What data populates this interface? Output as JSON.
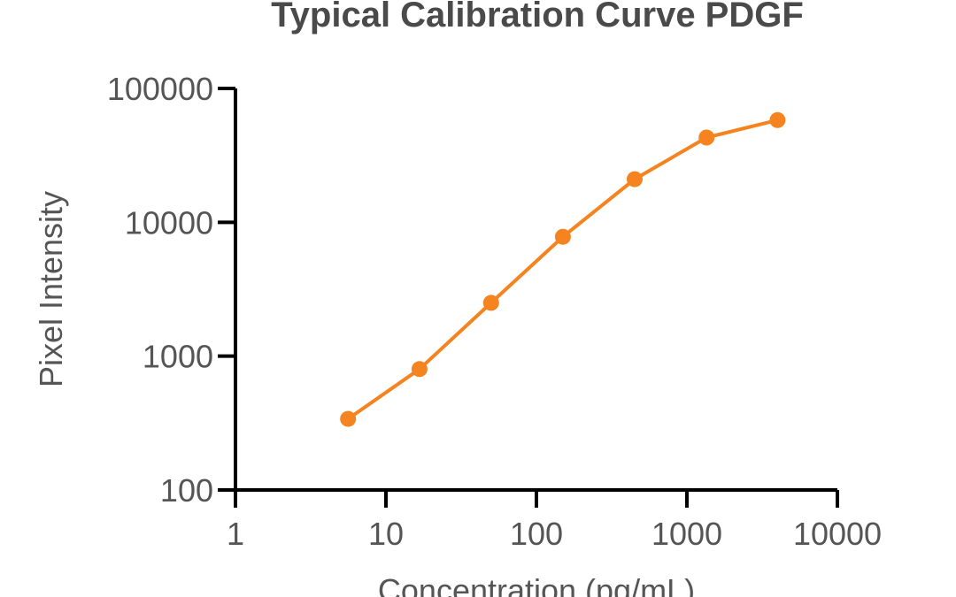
{
  "chart_data": {
    "type": "line",
    "title": "Typical Calibration Curve PDGF",
    "xlabel": "Concentration (pg/mL)",
    "ylabel": "Pixel Intensity",
    "xscale": "log",
    "yscale": "log",
    "xlim": [
      1,
      10000
    ],
    "ylim": [
      100,
      100000
    ],
    "x_ticks": [
      "1",
      "10",
      "100",
      "1000",
      "10000"
    ],
    "y_ticks": [
      "100",
      "1000",
      "10000",
      "100000"
    ],
    "grid": false,
    "legend": "none",
    "color": "#f5831f",
    "x": [
      5.6,
      16.7,
      50,
      150,
      450,
      1350,
      4000
    ],
    "series": [
      {
        "values": [
          340,
          800,
          2500,
          7800,
          21000,
          43000,
          58000
        ]
      }
    ]
  }
}
